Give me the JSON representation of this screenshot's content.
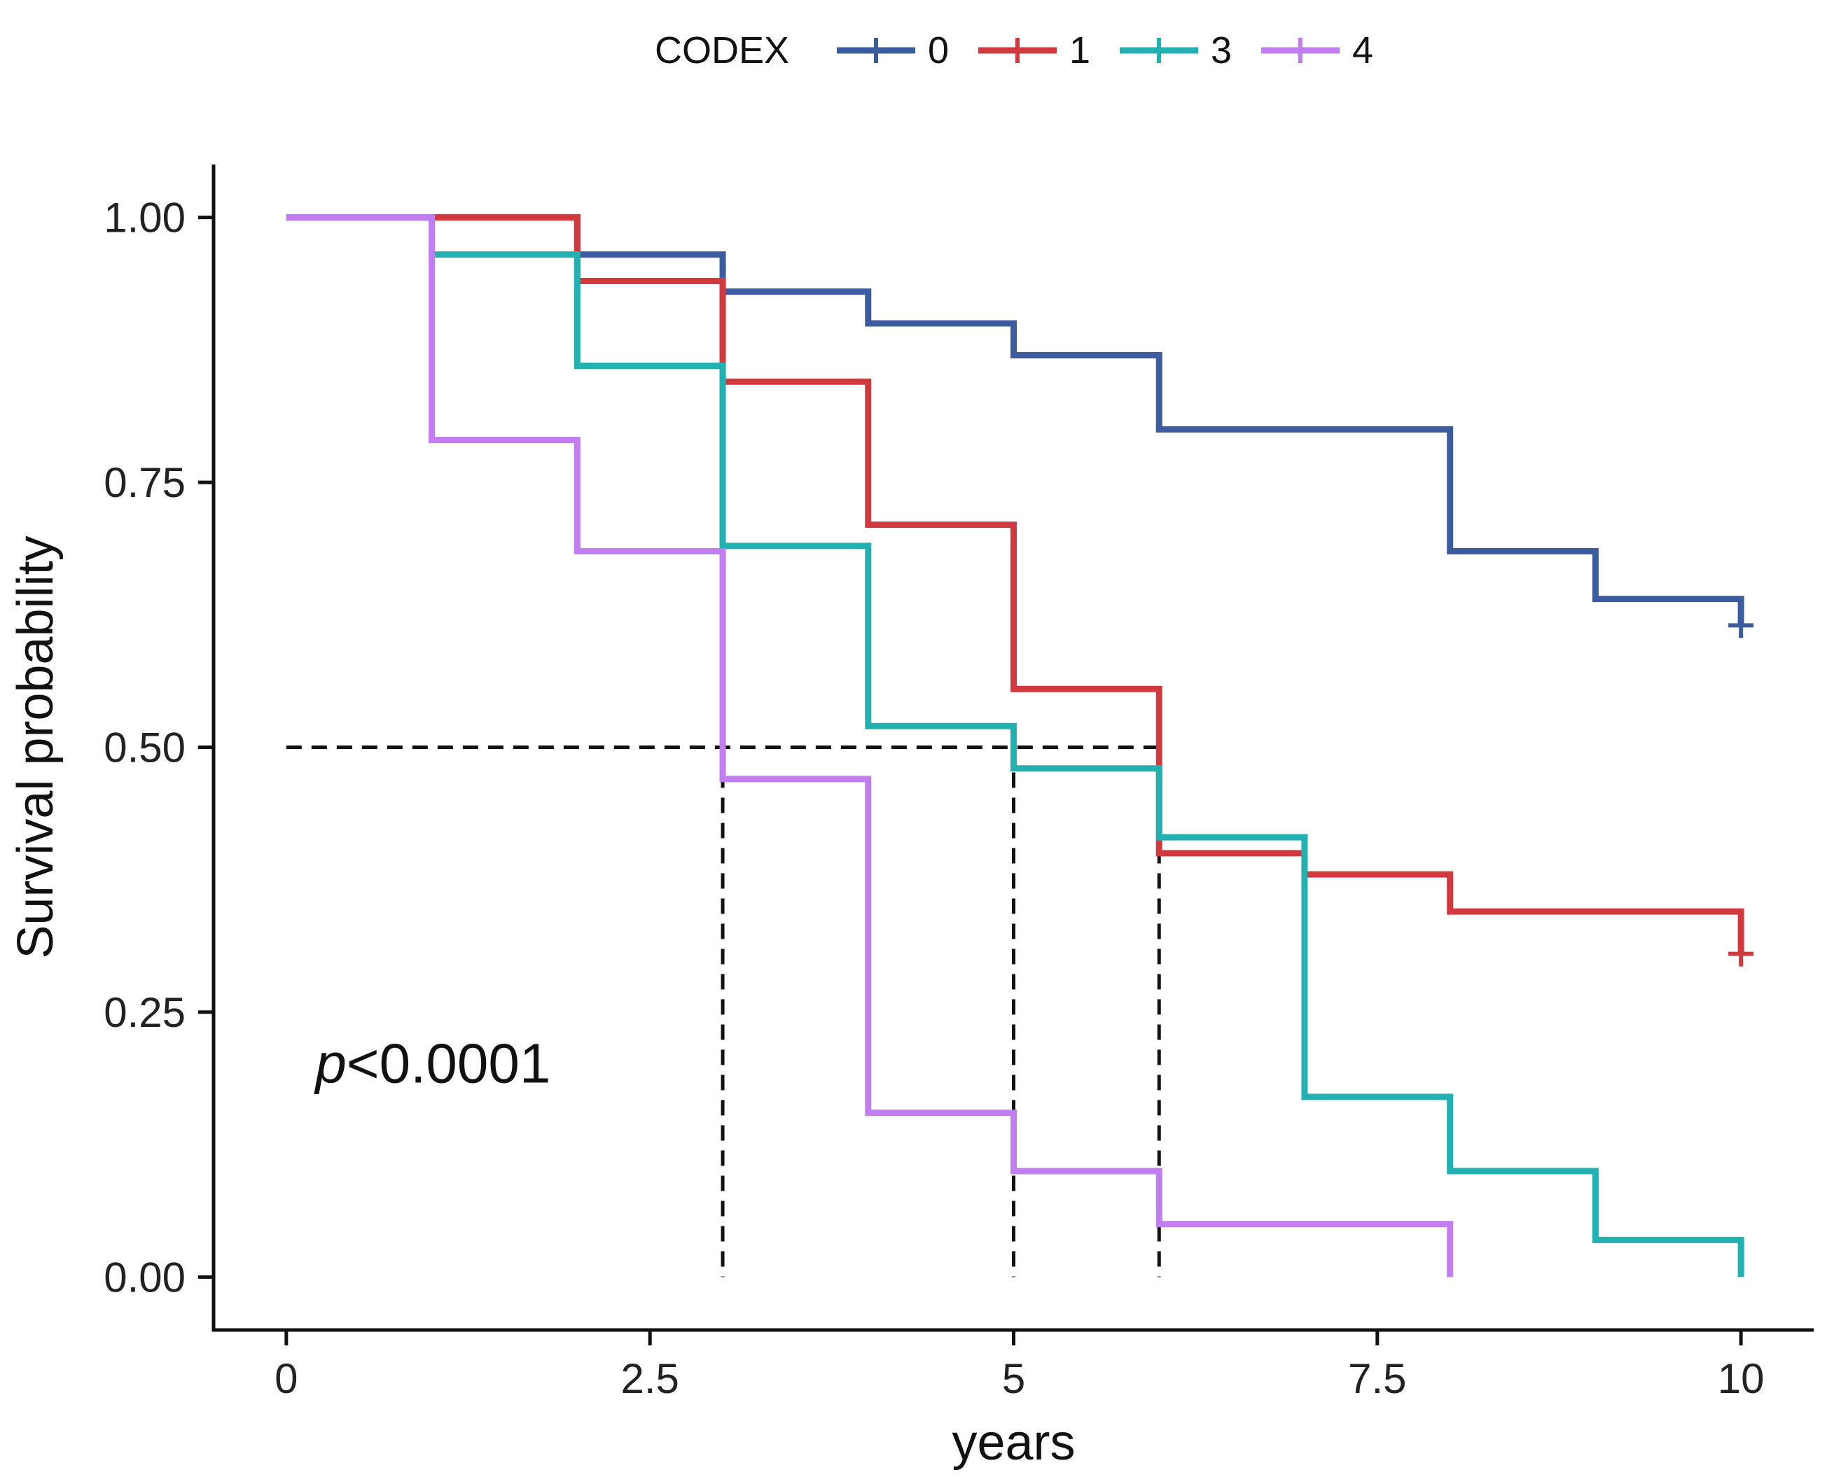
{
  "chart_data": {
    "type": "line",
    "subtype": "kaplan-meier-step",
    "xlabel": "years",
    "ylabel": "Survival probability",
    "xlim": [
      -0.5,
      10.5
    ],
    "ylim": [
      -0.05,
      1.05
    ],
    "xticks": [
      0,
      2.5,
      5,
      7.5,
      10
    ],
    "xtick_labels": [
      "0",
      "2.5",
      "5",
      "7.5",
      "10"
    ],
    "yticks": [
      0,
      0.25,
      0.5,
      0.75,
      1.0
    ],
    "ytick_labels": [
      "0.00",
      "0.25",
      "0.50",
      "0.75",
      "1.00"
    ],
    "legend": {
      "title": "CODEX",
      "placement": "top"
    },
    "annotation": {
      "p_italic": "p",
      "p_rest": "<0.0001",
      "x": 0.2,
      "y": 0.2
    },
    "median_line": {
      "y": 0.5,
      "x_start": 0,
      "x_end": 6,
      "drops": [
        3,
        5,
        6
      ]
    },
    "series": [
      {
        "name": "0",
        "color": "#3b5c9e",
        "x": [
          0,
          1,
          2,
          3,
          4,
          5,
          6,
          8,
          9,
          10
        ],
        "y": [
          1.0,
          1.0,
          0.965,
          0.93,
          0.9,
          0.87,
          0.8,
          0.685,
          0.64,
          0.615
        ],
        "censor": [
          [
            10,
            0.615
          ]
        ]
      },
      {
        "name": "1",
        "color": "#d0393e",
        "x": [
          0,
          2,
          3,
          4,
          5,
          6,
          7,
          8,
          10
        ],
        "y": [
          1.0,
          0.94,
          0.845,
          0.71,
          0.555,
          0.4,
          0.38,
          0.345,
          0.305
        ],
        "censor": [
          [
            10,
            0.305
          ]
        ]
      },
      {
        "name": "3",
        "color": "#22b0b0",
        "x": [
          0,
          1,
          2,
          3,
          4,
          5,
          6,
          7,
          8,
          9,
          10
        ],
        "y": [
          1.0,
          0.965,
          0.86,
          0.69,
          0.52,
          0.48,
          0.415,
          0.17,
          0.1,
          0.035,
          0.0
        ],
        "censor": []
      },
      {
        "name": "4",
        "color": "#c07ef0",
        "x": [
          0,
          1,
          2,
          3,
          4,
          5,
          6,
          8
        ],
        "y": [
          1.0,
          0.79,
          0.685,
          0.47,
          0.155,
          0.1,
          0.05,
          0.0
        ],
        "censor": []
      }
    ]
  }
}
